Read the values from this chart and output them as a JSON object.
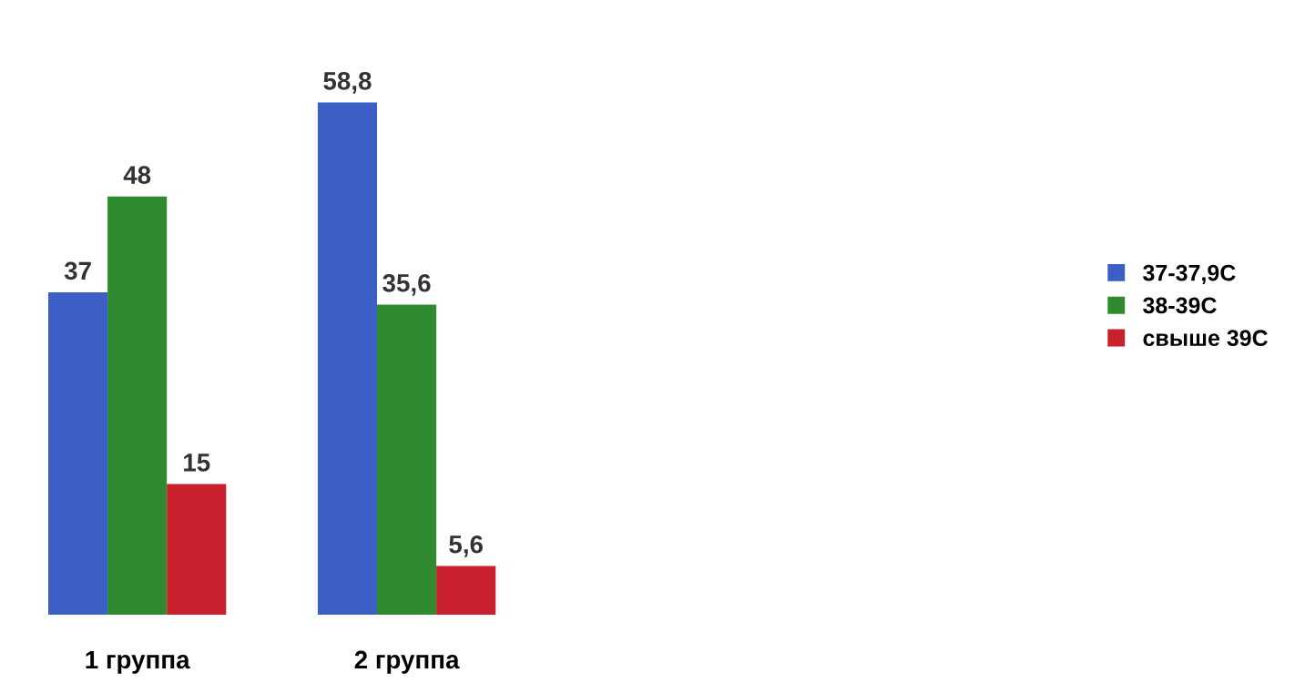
{
  "chart_data": {
    "type": "bar",
    "categories": [
      "1 группа",
      "2 группа"
    ],
    "series": [
      {
        "name": "37-37,9C",
        "color": "#3b5fc4",
        "values": [
          37,
          58.8
        ],
        "value_labels": [
          "37",
          "58,8"
        ]
      },
      {
        "name": "38-39С",
        "color": "#2f8a30",
        "values": [
          48,
          35.6
        ],
        "value_labels": [
          "48",
          "35,6"
        ]
      },
      {
        "name": "свыше 39С",
        "color": "#c8202c",
        "values": [
          15,
          5.6
        ],
        "value_labels": [
          "15",
          "5,6"
        ]
      }
    ],
    "legend": "right",
    "grid": false
  }
}
